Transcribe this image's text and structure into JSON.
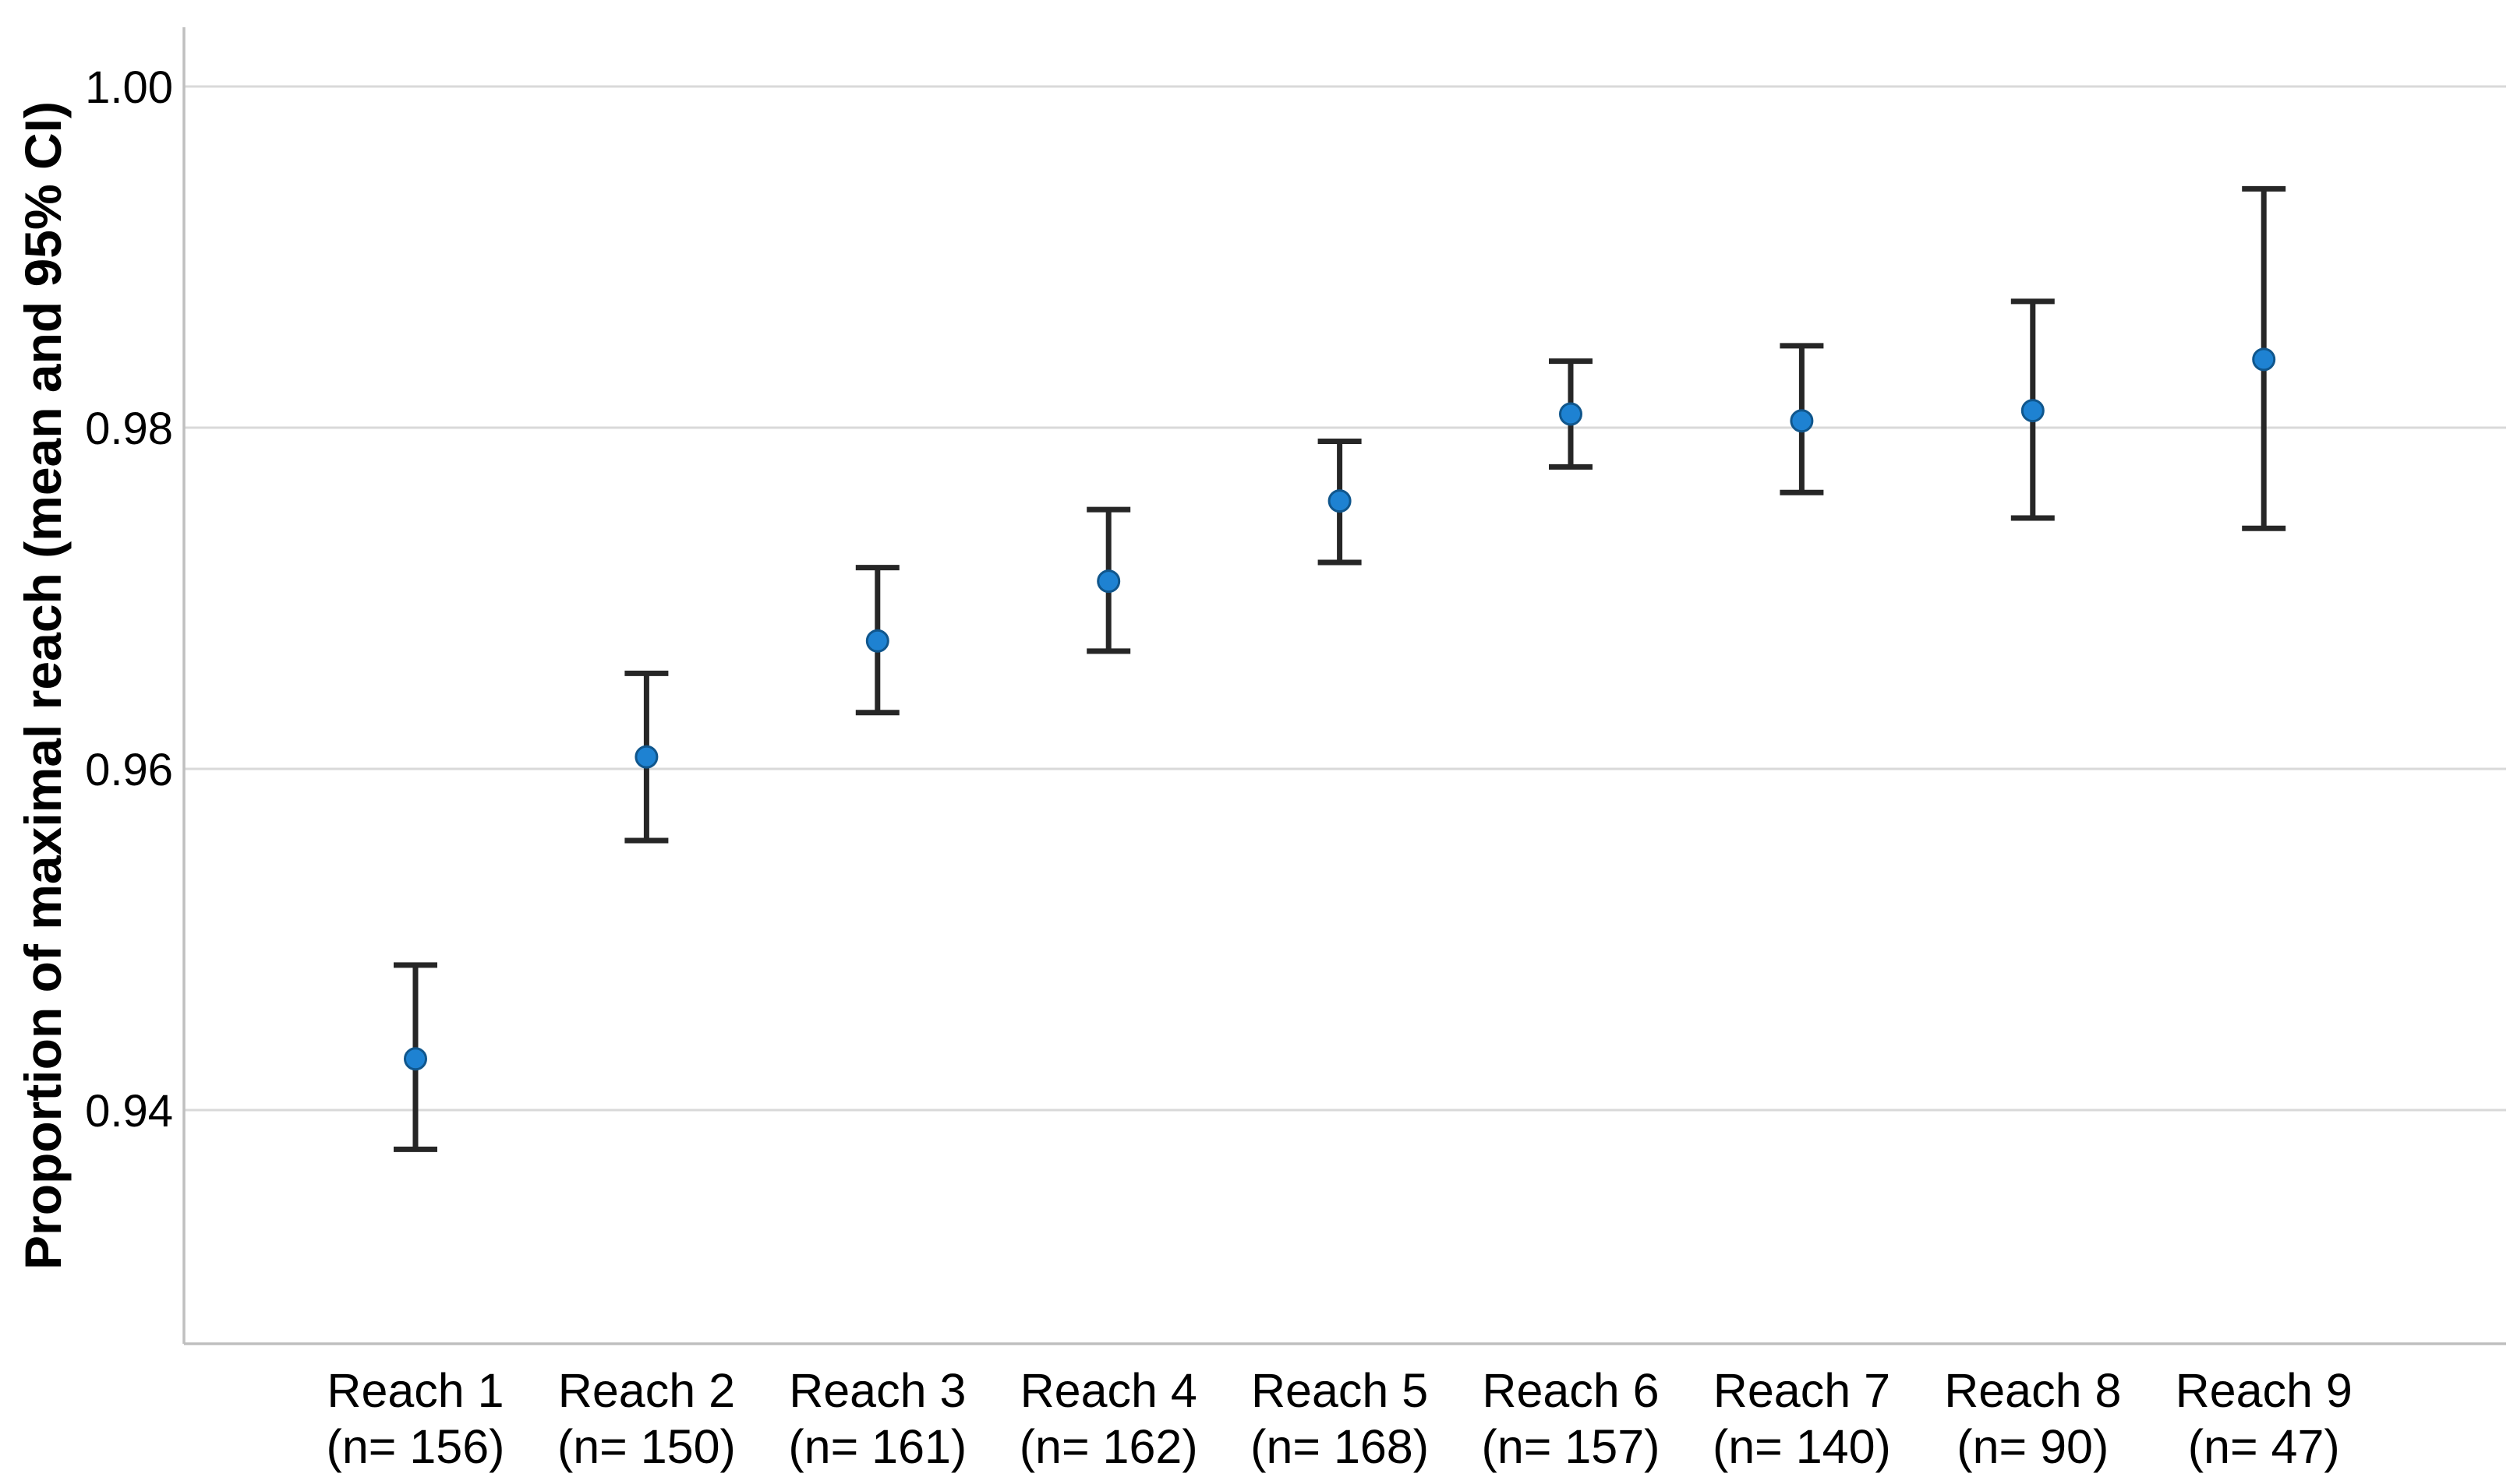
{
  "chart_data": {
    "type": "scatter",
    "subtype": "point-estimates-with-95ci-error-bars",
    "title": "",
    "xlabel": "",
    "ylabel": "Proportion of maximal reach (mean and 95% CI)",
    "categories": [
      "Reach 1",
      "Reach 2",
      "Reach 3",
      "Reach 4",
      "Reach 5",
      "Reach 6",
      "Reach 7",
      "Reach 8",
      "Reach 9"
    ],
    "n_labels": [
      "(n= 156)",
      "(n= 150)",
      "(n= 161)",
      "(n= 162)",
      "(n= 168)",
      "(n= 157)",
      "(n= 140)",
      "(n= 90)",
      "(n= 47)"
    ],
    "n_values": [
      156,
      150,
      161,
      162,
      168,
      157,
      140,
      90,
      47
    ],
    "series": [
      {
        "name": "Proportion of maximal reach (mean)",
        "means": [
          0.943,
          0.9607,
          0.9675,
          0.971,
          0.9757,
          0.9808,
          0.9804,
          0.981,
          0.984
        ],
        "ci_low": [
          0.9377,
          0.9558,
          0.9633,
          0.9669,
          0.9721,
          0.9777,
          0.9762,
          0.9747,
          0.9741
        ],
        "ci_high": [
          0.9485,
          0.9656,
          0.9718,
          0.9752,
          0.9792,
          0.9839,
          0.9848,
          0.9874,
          0.994
        ]
      }
    ],
    "yticks": [
      1.0,
      0.98,
      0.96,
      0.94
    ],
    "ytick_labels": [
      "1.00",
      "0.98",
      "0.96",
      "0.94"
    ],
    "ylim": [
      0.9263,
      1.00347
    ],
    "grid": "horizontal",
    "legend": "none",
    "colors": {
      "point_fill": "#1E82D2",
      "point_stroke": "#10568C",
      "error_bar": "#262626",
      "gridline": "#d9d9d9",
      "axis_line": "#bfbfbf",
      "text": "#000000",
      "background": "#ffffff"
    }
  }
}
